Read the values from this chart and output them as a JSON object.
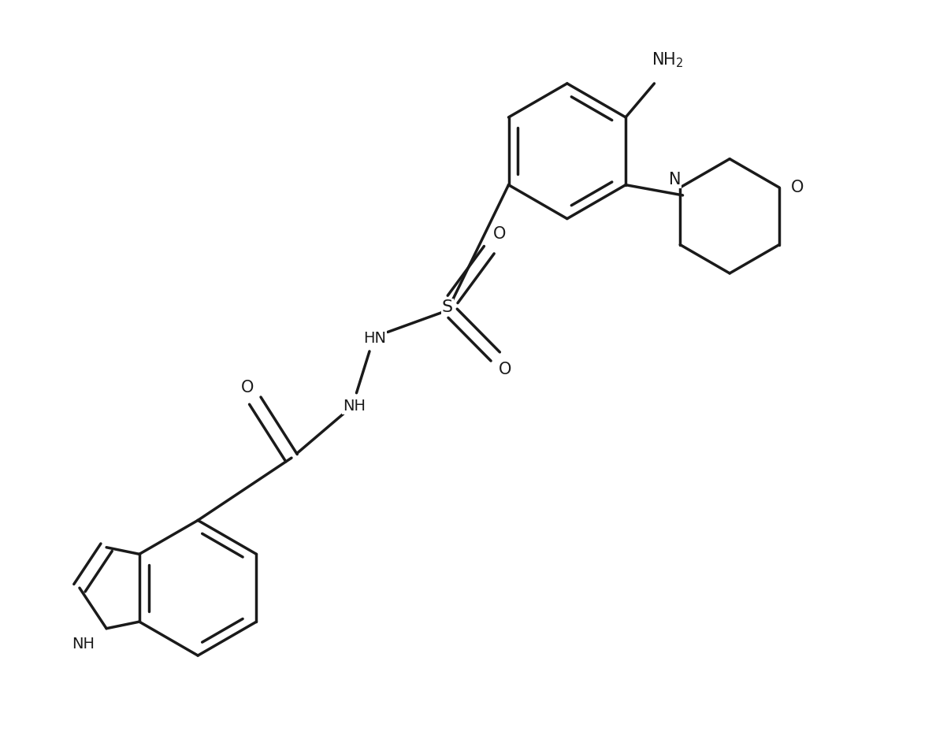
{
  "background_color": "#ffffff",
  "line_color": "#1a1a1a",
  "line_width": 2.5,
  "font_size": 14,
  "figsize": [
    12.02,
    9.38
  ],
  "dpi": 100,
  "xlim": [
    -2,
    14
  ],
  "ylim": [
    -10,
    4
  ]
}
